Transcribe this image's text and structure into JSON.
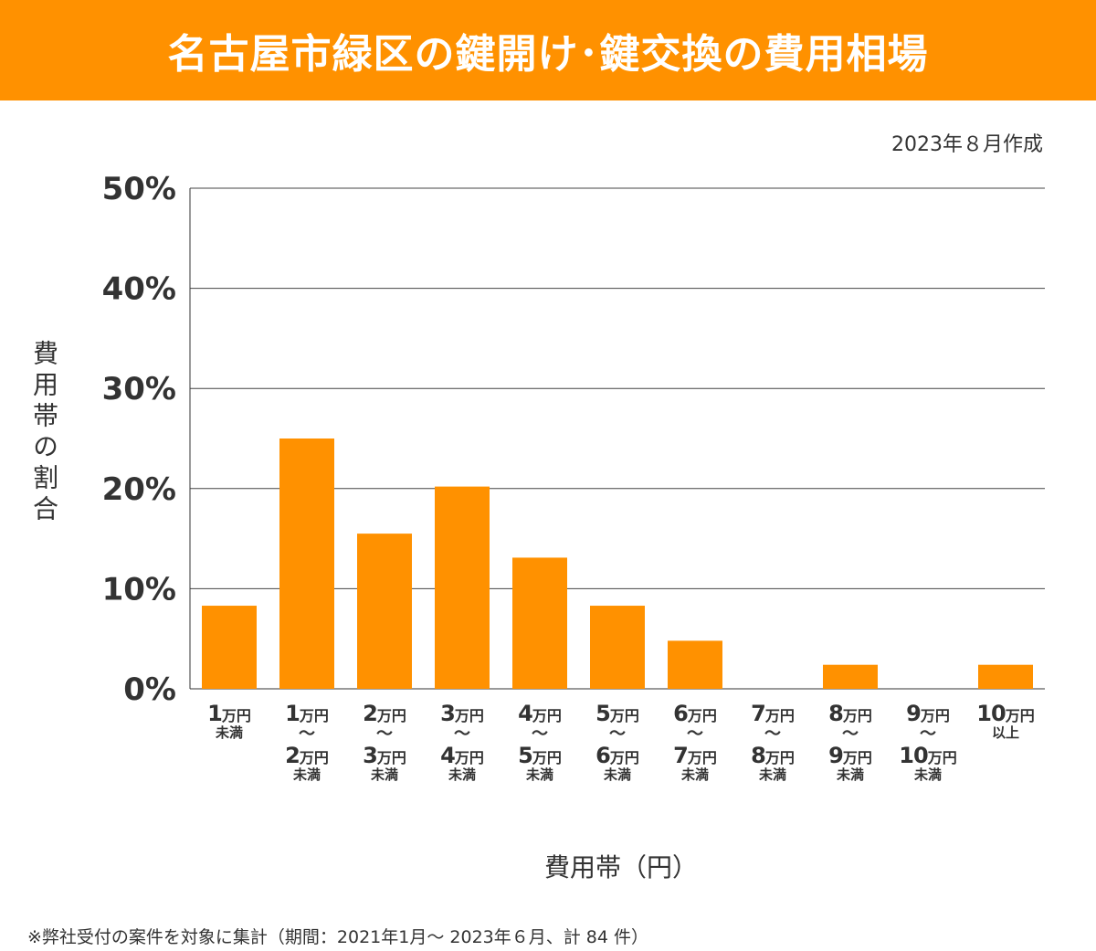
{
  "header": {
    "title": "名古屋市緑区の鍵開け･鍵交換の費用相場"
  },
  "created_date": "2023年８月作成",
  "footer_note": "※弊社受付の案件を対象に集計（期間：2021年1月～ 2023年６月、計 84 件）",
  "chart_data": {
    "type": "bar",
    "ylabel": "費用帯の割合",
    "xlabel": "費用帯（円）",
    "ylim": [
      0,
      50
    ],
    "yticks": [
      "0%",
      "10%",
      "20%",
      "30%",
      "40%",
      "50%"
    ],
    "grid": true,
    "bar_color": "#ff9100",
    "categories": [
      [
        "1万円",
        "未満"
      ],
      [
        "1万円",
        "〜",
        "2万円",
        "未満"
      ],
      [
        "2万円",
        "〜",
        "3万円",
        "未満"
      ],
      [
        "3万円",
        "〜",
        "4万円",
        "未満"
      ],
      [
        "4万円",
        "〜",
        "5万円",
        "未満"
      ],
      [
        "5万円",
        "〜",
        "6万円",
        "未満"
      ],
      [
        "6万円",
        "〜",
        "7万円",
        "未満"
      ],
      [
        "7万円",
        "〜",
        "8万円",
        "未満"
      ],
      [
        "8万円",
        "〜",
        "9万円",
        "未満"
      ],
      [
        "9万円",
        "〜",
        "10万円",
        "未満"
      ],
      [
        "10万円",
        "以上"
      ]
    ],
    "values": [
      8.3,
      25.0,
      15.5,
      20.2,
      13.1,
      8.3,
      4.8,
      0,
      2.4,
      0,
      2.4
    ]
  }
}
